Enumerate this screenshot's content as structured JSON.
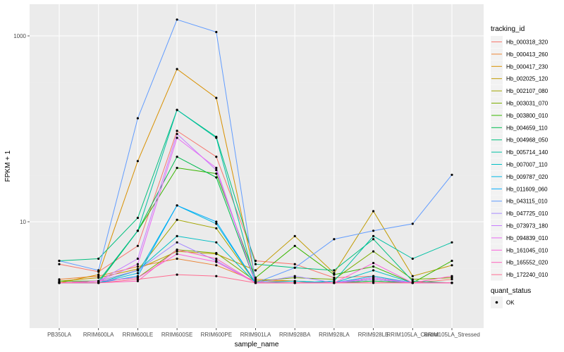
{
  "chart_data": {
    "type": "line",
    "title": "",
    "xlabel": "sample_name",
    "ylabel": "FPKM + 1",
    "y_scale": "log10",
    "y_ticks": [
      "10",
      "1000"
    ],
    "grid": true,
    "legend_position": "right",
    "categories": [
      "PB350LA",
      "RRIM600LA",
      "RRIM600LE",
      "RRIM600SE",
      "RRIM600PE",
      "RRIM901LA",
      "RRIM928BA",
      "RRIM928LA",
      "RRIM928LE",
      "RRIM105LA_Control",
      "RRIM105LA_Stressed"
    ],
    "series": [
      {
        "name": "Hb_000318_320",
        "color": "#F8766D",
        "values": [
          3.5,
          2.9,
          5.5,
          95,
          50,
          3.8,
          3.5,
          2.5,
          2.6,
          2.2,
          2.4
        ]
      },
      {
        "name": "Hb_000413_260",
        "color": "#EB8335",
        "values": [
          2.4,
          2.6,
          3.3,
          4.0,
          3.4,
          2.3,
          2.3,
          2.2,
          2.4,
          2.2,
          2.2
        ]
      },
      {
        "name": "Hb_000417_230",
        "color": "#D89000",
        "values": [
          2.2,
          2.7,
          45,
          440,
          215,
          2.4,
          2.3,
          2.2,
          2.3,
          2.2,
          2.2
        ]
      },
      {
        "name": "Hb_002025_120",
        "color": "#C09B00",
        "values": [
          2.3,
          2.5,
          3.1,
          4.8,
          4.5,
          3.0,
          7.0,
          2.8,
          13,
          2.6,
          3.4
        ]
      },
      {
        "name": "Hb_002107_080",
        "color": "#A3A500",
        "values": [
          2.2,
          2.3,
          3.0,
          10.5,
          8.5,
          2.2,
          2.2,
          2.2,
          2.5,
          2.2,
          2.2
        ]
      },
      {
        "name": "Hb_003031_070",
        "color": "#7CAE00",
        "values": [
          2.2,
          2.3,
          2.5,
          5.0,
          4.6,
          2.3,
          2.5,
          2.4,
          4.8,
          2.4,
          2.5
        ]
      },
      {
        "name": "Hb_003800_010",
        "color": "#39B600",
        "values": [
          2.3,
          2.3,
          8.0,
          38,
          33,
          2.5,
          5.5,
          2.7,
          3.3,
          2.2,
          3.8
        ]
      },
      {
        "name": "Hb_004659_110",
        "color": "#00BB4E",
        "values": [
          2.2,
          2.2,
          8.0,
          50,
          30,
          2.2,
          2.2,
          2.2,
          2.3,
          2.2,
          2.2
        ]
      },
      {
        "name": "Hb_004968_050",
        "color": "#00BF7D",
        "values": [
          3.8,
          4.0,
          11,
          160,
          82,
          3.5,
          3.2,
          3.0,
          6.5,
          2.3,
          2.2
        ]
      },
      {
        "name": "Hb_005714_140",
        "color": "#00C1A3",
        "values": [
          2.2,
          2.3,
          8.0,
          160,
          80,
          2.2,
          2.2,
          2.3,
          7.0,
          4.0,
          6.0
        ]
      },
      {
        "name": "Hb_007007_110",
        "color": "#00BFC4",
        "values": [
          2.2,
          2.2,
          3.0,
          7.0,
          6.0,
          2.2,
          2.2,
          2.2,
          3.0,
          2.2,
          2.2
        ]
      },
      {
        "name": "Hb_009787_020",
        "color": "#00B8E5",
        "values": [
          2.2,
          2.2,
          2.8,
          15,
          9.5,
          2.2,
          2.3,
          2.2,
          2.6,
          2.2,
          2.2
        ]
      },
      {
        "name": "Hb_011609_060",
        "color": "#00ABFD",
        "values": [
          2.2,
          2.2,
          2.6,
          15,
          10,
          2.2,
          2.2,
          2.2,
          2.4,
          2.2,
          2.2
        ]
      },
      {
        "name": "Hb_043115_010",
        "color": "#619CFF",
        "values": [
          3.8,
          3.0,
          130,
          1500,
          1100,
          2.2,
          3.2,
          6.5,
          8.0,
          9.5,
          32
        ]
      },
      {
        "name": "Hb_047725_010",
        "color": "#A58AFF",
        "values": [
          2.2,
          2.3,
          3.0,
          6.0,
          3.8,
          2.2,
          2.6,
          2.2,
          2.5,
          2.2,
          2.2
        ]
      },
      {
        "name": "Hb_073973_180",
        "color": "#C77CFF",
        "values": [
          2.2,
          2.3,
          4.0,
          88,
          36,
          2.2,
          2.2,
          2.2,
          2.4,
          2.2,
          2.2
        ]
      },
      {
        "name": "Hb_094839_010",
        "color": "#E76BF3",
        "values": [
          2.2,
          2.3,
          3.5,
          80,
          38,
          2.2,
          2.2,
          2.2,
          2.5,
          2.2,
          2.2
        ]
      },
      {
        "name": "Hb_161045_010",
        "color": "#FA62DB",
        "values": [
          2.2,
          2.3,
          2.5,
          4.5,
          3.7,
          2.2,
          2.2,
          2.2,
          3.6,
          2.2,
          2.2
        ]
      },
      {
        "name": "Hb_165552_020",
        "color": "#FF62BC",
        "values": [
          2.2,
          2.2,
          2.3,
          5.0,
          4.0,
          2.2,
          2.2,
          2.2,
          2.2,
          2.2,
          2.6
        ]
      },
      {
        "name": "Hb_172240_010",
        "color": "#FF6C91",
        "values": [
          2.2,
          2.2,
          2.4,
          2.7,
          2.6,
          2.2,
          2.2,
          2.2,
          2.2,
          2.2,
          2.2
        ]
      }
    ],
    "shape_legend": {
      "title": "quant_status",
      "items": [
        "OK"
      ]
    },
    "legend_title": "tracking_id"
  },
  "colors": {
    "panel_bg": "#EBEBEB",
    "grid_major": "#FFFFFF",
    "point": "#000000"
  }
}
